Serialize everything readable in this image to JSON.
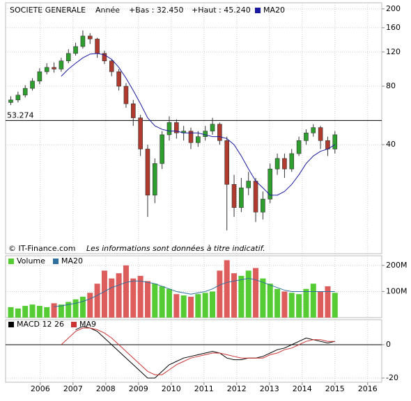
{
  "chart_data": [
    {
      "type": "candlestick",
      "title": "SOCIETE GENERALE",
      "period": "Année",
      "annotations": [
        "+Bas : 32.450",
        "+Haut : 45.240"
      ],
      "footnotes": [
        "© IT-Finance.com",
        "Les informations sont données à titre indicatif."
      ],
      "log_scale": true,
      "ylim": [
        11,
        215
      ],
      "yticks": [
        40,
        80,
        120,
        160,
        200
      ],
      "xlim": [
        2004.94,
        2016.43
      ],
      "hline": {
        "value": 53.274,
        "label": "53.274"
      },
      "up_color": "#2e9e2e",
      "down_color": "#b03a2e",
      "x": [
        2005.1,
        2005.32,
        2005.54,
        2005.76,
        2005.98,
        2006.2,
        2006.42,
        2006.64,
        2006.86,
        2007.08,
        2007.3,
        2007.52,
        2007.74,
        2007.96,
        2008.18,
        2008.4,
        2008.62,
        2008.84,
        2009.06,
        2009.28,
        2009.5,
        2009.72,
        2009.94,
        2010.16,
        2010.38,
        2010.6,
        2010.82,
        2011.04,
        2011.26,
        2011.48,
        2011.7,
        2011.92,
        2012.14,
        2012.36,
        2012.58,
        2012.8,
        2013.02,
        2013.24,
        2013.46,
        2013.68,
        2013.9,
        2014.12,
        2014.34,
        2014.56,
        2014.78,
        2015.0
      ],
      "open": [
        66,
        68,
        72,
        78,
        85,
        95,
        100,
        98,
        108,
        118,
        128,
        145,
        140,
        118,
        108,
        95,
        80,
        65,
        55,
        38,
        22,
        32,
        45,
        52,
        46,
        47,
        41,
        44,
        47,
        51,
        42,
        25,
        19,
        24,
        26,
        18,
        21,
        30,
        34,
        30,
        36,
        42,
        46,
        49,
        42,
        38
      ],
      "high": [
        71,
        75,
        81,
        88,
        99,
        105,
        106,
        112,
        124,
        134,
        155,
        150,
        142,
        122,
        110,
        98,
        83,
        68,
        57,
        40,
        34,
        47,
        56,
        54,
        50,
        49,
        47,
        50,
        55,
        52,
        44,
        28,
        27,
        29,
        27,
        23,
        32,
        36,
        36,
        38,
        44,
        48,
        51,
        50,
        44,
        47
      ],
      "low": [
        64,
        66,
        70,
        76,
        82,
        92,
        94,
        95,
        105,
        115,
        125,
        132,
        112,
        104,
        90,
        76,
        62,
        50,
        35,
        17,
        20,
        30,
        42,
        43,
        42,
        38,
        39,
        42,
        45,
        40,
        14.5,
        17,
        18,
        22,
        16,
        16.5,
        20,
        28,
        27,
        29,
        35,
        40,
        44,
        38,
        35,
        36
      ],
      "close": [
        68,
        72,
        78,
        85,
        95,
        100,
        98,
        108,
        118,
        128,
        145,
        140,
        118,
        108,
        95,
        80,
        65,
        55,
        38,
        22,
        32,
        45,
        52,
        46,
        47,
        41,
        44,
        47,
        51,
        42,
        25,
        19,
        24,
        26,
        18,
        21,
        30,
        34,
        30,
        36,
        42,
        46,
        49,
        42,
        38,
        45
      ],
      "series": [
        {
          "name": "MA20",
          "color": "#1a1aa0",
          "values": [
            null,
            null,
            null,
            null,
            null,
            null,
            null,
            90,
            98,
            105,
            112,
            117,
            118,
            116,
            110,
            100,
            88,
            76,
            65,
            55,
            50,
            48,
            47,
            47,
            46,
            46,
            46,
            45,
            44,
            44,
            43,
            40,
            35,
            30,
            26,
            24,
            22,
            22,
            23,
            25,
            28,
            32,
            35,
            37,
            38,
            40
          ]
        }
      ]
    },
    {
      "type": "bar",
      "ylim": [
        0,
        237
      ],
      "yticks": [
        {
          "value": 100,
          "label": "100M"
        },
        {
          "value": 200,
          "label": "200M"
        }
      ],
      "up_color": "#55cc33",
      "down_color": "#dd5c5c",
      "series": [
        {
          "name": "Volume",
          "values": [
            40,
            35,
            45,
            50,
            45,
            40,
            55,
            50,
            60,
            70,
            80,
            95,
            130,
            180,
            150,
            170,
            200,
            150,
            160,
            140,
            130,
            120,
            110,
            90,
            85,
            80,
            90,
            95,
            100,
            180,
            220,
            170,
            160,
            180,
            190,
            150,
            130,
            110,
            100,
            95,
            90,
            110,
            130,
            100,
            120,
            95
          ]
        },
        {
          "name": "MA20",
          "color": "#2f6f9f",
          "values": [
            null,
            null,
            null,
            null,
            null,
            null,
            42,
            45,
            50,
            55,
            62,
            72,
            85,
            100,
            115,
            125,
            135,
            140,
            140,
            135,
            130,
            120,
            110,
            100,
            95,
            90,
            95,
            100,
            110,
            125,
            135,
            140,
            145,
            150,
            145,
            135,
            125,
            115,
            105,
            100,
            100,
            100,
            100,
            100,
            100,
            100
          ]
        }
      ]
    },
    {
      "type": "line",
      "ylim": [
        -22.5,
        15
      ],
      "yticks": [
        -20,
        0
      ],
      "xticks": [
        2006,
        2007,
        2008,
        2009,
        2010,
        2011,
        2012,
        2013,
        2014,
        2015,
        2016
      ],
      "series": [
        {
          "name": "MACD 12 26",
          "color": "#000000",
          "values": [
            null,
            null,
            null,
            null,
            null,
            null,
            null,
            null,
            null,
            9,
            11,
            10,
            8,
            4,
            0,
            -4,
            -8,
            -12,
            -16,
            -20,
            -20,
            -16,
            -12,
            -10,
            -8,
            -7,
            -6,
            -5,
            -4,
            -5,
            -8,
            -9,
            -9,
            -8,
            -8,
            -7,
            -5,
            -3,
            -2,
            0,
            2,
            4,
            3,
            2,
            1,
            2
          ]
        },
        {
          "name": "MA9",
          "color": "#cc3333",
          "values": [
            null,
            null,
            null,
            null,
            null,
            null,
            null,
            0,
            4,
            8,
            10,
            10,
            9,
            7,
            4,
            0,
            -4,
            -8,
            -12,
            -16,
            -18,
            -18,
            -15,
            -12,
            -10,
            -8,
            -7,
            -6,
            -5,
            -5,
            -6,
            -7,
            -8,
            -8,
            -8,
            -8,
            -6,
            -5,
            -3,
            -2,
            0,
            2,
            3,
            3,
            2,
            2
          ]
        }
      ]
    }
  ]
}
